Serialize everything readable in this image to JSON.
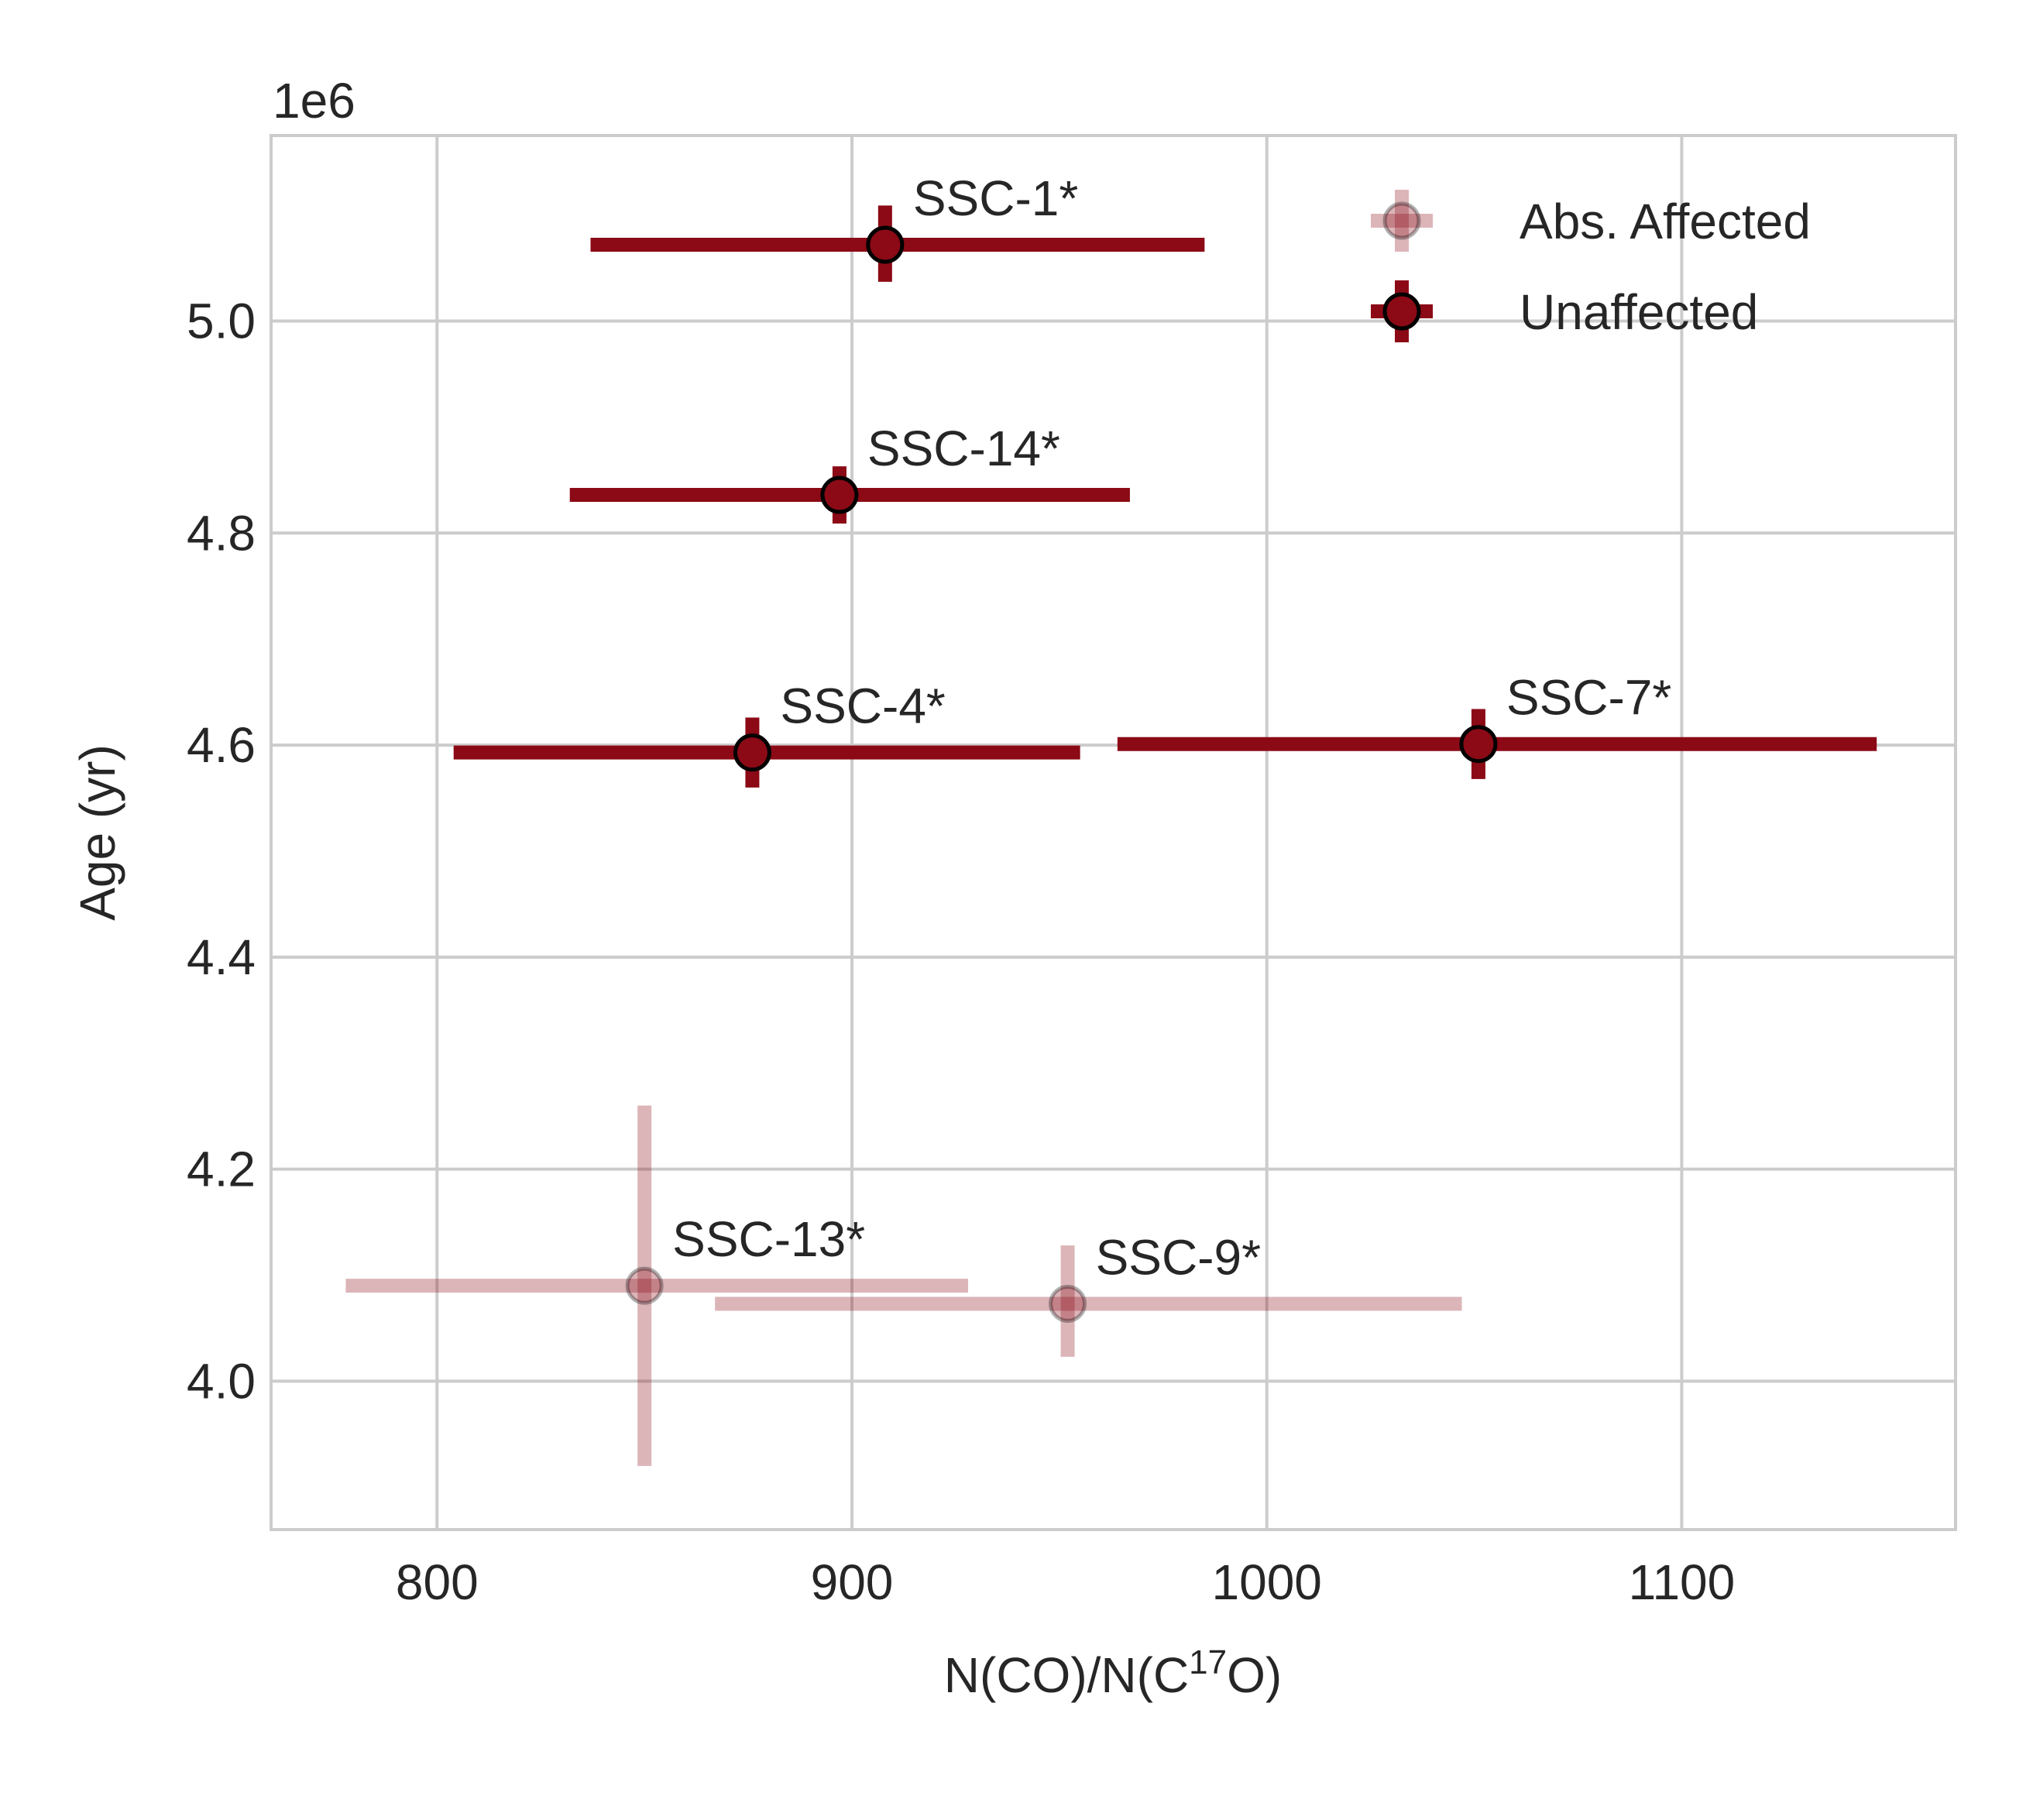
{
  "chart_data": {
    "type": "scatter",
    "title": "",
    "xlabel_main": "N(CO)/N(C",
    "xlabel_sup": "17",
    "xlabel_end": "O)",
    "ylabel": "Age (yr)",
    "y_offset_text": "1e6",
    "xlim": [
      760,
      1166
    ],
    "ylim": [
      3.86,
      5.175
    ],
    "x_ticks": [
      800,
      900,
      1000,
      1100
    ],
    "x_tick_labels": [
      "800",
      "900",
      "1000",
      "1100"
    ],
    "y_ticks": [
      4.0,
      4.2,
      4.4,
      4.6,
      4.8,
      5.0
    ],
    "y_tick_labels": [
      "4.0",
      "4.2",
      "4.4",
      "4.6",
      "4.8",
      "5.0"
    ],
    "grid": true,
    "legend_position": "top-right",
    "series": [
      {
        "name": "Abs. Affected",
        "color": "#8b0a16",
        "alpha": 0.3,
        "points": [
          {
            "label": "SSC-13*",
            "x": 850,
            "y": 4.09,
            "xerr": [
              72,
              78
            ],
            "yerr": [
              0.17,
              0.17
            ]
          },
          {
            "label": "SSC-9*",
            "x": 952,
            "y": 4.073,
            "xerr": [
              85,
              95
            ],
            "yerr": [
              0.05,
              0.055
            ]
          }
        ]
      },
      {
        "name": "Unaffected",
        "color": "#8b0a16",
        "alpha": 1.0,
        "points": [
          {
            "label": "SSC-1*",
            "x": 908,
            "y": 5.072,
            "xerr": [
              71,
              77
            ],
            "yerr": [
              0.035,
              0.037
            ]
          },
          {
            "label": "SSC-14*",
            "x": 897,
            "y": 4.836,
            "xerr": [
              65,
              70
            ],
            "yerr": [
              0.027,
              0.027
            ]
          },
          {
            "label": "SSC-4*",
            "x": 876,
            "y": 4.593,
            "xerr": [
              72,
              79
            ],
            "yerr": [
              0.033,
              0.033
            ]
          },
          {
            "label": "SSC-7*",
            "x": 1051,
            "y": 4.601,
            "xerr": [
              87,
              96
            ],
            "yerr": [
              0.033,
              0.033
            ]
          }
        ]
      }
    ]
  }
}
